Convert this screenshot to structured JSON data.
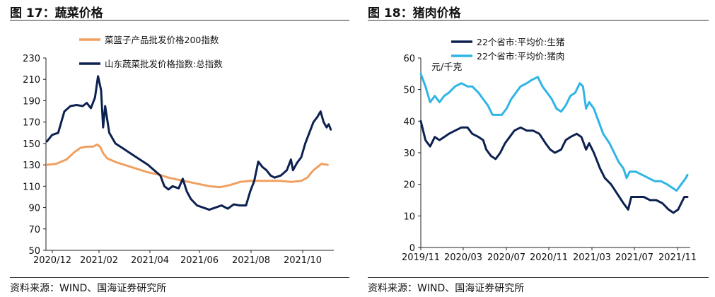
{
  "figures": {
    "left_title": "图 17：蔬菜价格",
    "right_title": "图 18：猪肉价格",
    "left_source": "资料来源：WIND、国海证券研究所",
    "right_source": "资料来源：WIND、国海证券研究所"
  },
  "chart_data": [
    {
      "type": "line",
      "title": "图 17：蔬菜价格",
      "ylim": [
        50,
        230
      ],
      "y_ticks": [
        50,
        70,
        90,
        110,
        130,
        150,
        170,
        190,
        210,
        230
      ],
      "x_tick_labels": [
        "2020/12",
        "2021/02",
        "2021/04",
        "2021/06",
        "2021/08",
        "2021/10"
      ],
      "x_range_months": [
        0,
        11.3
      ],
      "colors": [
        "#F0A060",
        "#0D2150"
      ],
      "series": [
        {
          "name": "菜篮子产品批发价格200指数",
          "color": "#F0A060",
          "points": [
            [
              0.05,
              130
            ],
            [
              0.5,
              131
            ],
            [
              1.0,
              135
            ],
            [
              1.4,
              142
            ],
            [
              1.7,
              146
            ],
            [
              2.0,
              147
            ],
            [
              2.3,
              147
            ],
            [
              2.5,
              149
            ],
            [
              2.65,
              147
            ],
            [
              2.8,
              141
            ],
            [
              3.0,
              136
            ],
            [
              3.5,
              132
            ],
            [
              4.0,
              129
            ],
            [
              4.5,
              126
            ],
            [
              5.0,
              123
            ],
            [
              5.5,
              121
            ],
            [
              6.0,
              118
            ],
            [
              6.5,
              116
            ],
            [
              7.0,
              114
            ],
            [
              7.5,
              112
            ],
            [
              8.0,
              110
            ],
            [
              8.5,
              109
            ],
            [
              9.0,
              111
            ],
            [
              9.5,
              114
            ],
            [
              10.0,
              115
            ],
            [
              10.5,
              115
            ],
            [
              11.0,
              115
            ],
            [
              11.5,
              115
            ],
            [
              12.0,
              114
            ],
            [
              12.5,
              115
            ],
            [
              12.8,
              118
            ],
            [
              13.1,
              125
            ],
            [
              13.5,
              131
            ],
            [
              13.8,
              130
            ]
          ]
        },
        {
          "name": "山东蔬菜批发价格指数:总指数",
          "color": "#0D2150",
          "points": [
            [
              0.05,
              152
            ],
            [
              0.3,
              158
            ],
            [
              0.6,
              160
            ],
            [
              0.9,
              180
            ],
            [
              1.2,
              185
            ],
            [
              1.5,
              186
            ],
            [
              1.8,
              185
            ],
            [
              2.0,
              188
            ],
            [
              2.2,
              183
            ],
            [
              2.4,
              193
            ],
            [
              2.55,
              213
            ],
            [
              2.7,
              200
            ],
            [
              2.8,
              165
            ],
            [
              2.9,
              185
            ],
            [
              3.1,
              160
            ],
            [
              3.4,
              150
            ],
            [
              3.8,
              145
            ],
            [
              4.2,
              140
            ],
            [
              4.6,
              135
            ],
            [
              5.0,
              130
            ],
            [
              5.3,
              125
            ],
            [
              5.6,
              120
            ],
            [
              5.8,
              110
            ],
            [
              6.0,
              107
            ],
            [
              6.2,
              110
            ],
            [
              6.5,
              108
            ],
            [
              6.7,
              117
            ],
            [
              6.9,
              105
            ],
            [
              7.1,
              98
            ],
            [
              7.4,
              92
            ],
            [
              7.7,
              90
            ],
            [
              8.0,
              88
            ],
            [
              8.3,
              90
            ],
            [
              8.6,
              92
            ],
            [
              8.9,
              89
            ],
            [
              9.2,
              93
            ],
            [
              9.5,
              92
            ],
            [
              9.8,
              92
            ],
            [
              10.0,
              105
            ],
            [
              10.2,
              115
            ],
            [
              10.4,
              133
            ],
            [
              10.6,
              128
            ],
            [
              10.8,
              125
            ],
            [
              11.0,
              120
            ],
            [
              11.2,
              118
            ],
            [
              11.5,
              120
            ],
            [
              11.8,
              125
            ],
            [
              12.0,
              135
            ],
            [
              12.1,
              125
            ],
            [
              12.3,
              132
            ],
            [
              12.5,
              137
            ],
            [
              12.7,
              150
            ],
            [
              12.9,
              160
            ],
            [
              13.1,
              170
            ],
            [
              13.3,
              175
            ],
            [
              13.45,
              180
            ],
            [
              13.6,
              170
            ],
            [
              13.75,
              165
            ],
            [
              13.85,
              168
            ],
            [
              13.95,
              163
            ]
          ]
        }
      ]
    },
    {
      "type": "line",
      "title": "图 18：猪肉价格",
      "unit_label": "元/千克",
      "ylim": [
        0,
        60
      ],
      "y_ticks": [
        0,
        10,
        20,
        30,
        40,
        50,
        60
      ],
      "x_tick_labels": [
        "2019/11",
        "2020/03",
        "2020/07",
        "2020/11",
        "2021/03",
        "2021/07",
        "2021/11"
      ],
      "colors": [
        "#0D2150",
        "#2FB5E6"
      ],
      "series": [
        {
          "name": "22个省市:平均价:生猪",
          "color": "#0D2150",
          "points": [
            [
              0.0,
              40
            ],
            [
              0.3,
              34
            ],
            [
              0.6,
              32
            ],
            [
              0.9,
              35
            ],
            [
              1.2,
              34
            ],
            [
              1.5,
              35
            ],
            [
              1.8,
              36
            ],
            [
              2.2,
              37
            ],
            [
              2.6,
              38
            ],
            [
              3.0,
              38
            ],
            [
              3.3,
              36
            ],
            [
              3.7,
              35
            ],
            [
              4.0,
              34
            ],
            [
              4.2,
              31
            ],
            [
              4.5,
              29
            ],
            [
              4.8,
              28
            ],
            [
              5.1,
              30
            ],
            [
              5.4,
              33
            ],
            [
              5.7,
              35
            ],
            [
              6.0,
              37
            ],
            [
              6.4,
              38
            ],
            [
              6.8,
              37
            ],
            [
              7.2,
              37
            ],
            [
              7.6,
              36
            ],
            [
              8.0,
              33
            ],
            [
              8.3,
              31
            ],
            [
              8.6,
              30
            ],
            [
              9.0,
              31
            ],
            [
              9.3,
              34
            ],
            [
              9.6,
              35
            ],
            [
              10.0,
              36
            ],
            [
              10.3,
              35
            ],
            [
              10.6,
              31
            ],
            [
              10.8,
              33
            ],
            [
              11.1,
              30
            ],
            [
              11.5,
              25
            ],
            [
              11.8,
              22
            ],
            [
              12.2,
              20
            ],
            [
              12.6,
              17
            ],
            [
              13.0,
              14
            ],
            [
              13.3,
              12
            ],
            [
              13.5,
              16
            ],
            [
              13.9,
              16
            ],
            [
              14.3,
              16
            ],
            [
              14.7,
              15
            ],
            [
              15.1,
              15
            ],
            [
              15.5,
              14
            ],
            [
              15.9,
              12
            ],
            [
              16.2,
              11
            ],
            [
              16.5,
              12
            ],
            [
              16.7,
              14
            ],
            [
              16.9,
              16
            ],
            [
              17.1,
              16
            ]
          ]
        },
        {
          "name": "22个省市:平均价:猪肉",
          "color": "#2FB5E6",
          "points": [
            [
              0.0,
              55
            ],
            [
              0.3,
              51
            ],
            [
              0.6,
              46
            ],
            [
              0.9,
              48
            ],
            [
              1.2,
              46
            ],
            [
              1.5,
              48
            ],
            [
              1.8,
              49
            ],
            [
              2.2,
              51
            ],
            [
              2.6,
              52
            ],
            [
              3.0,
              51
            ],
            [
              3.3,
              51
            ],
            [
              3.7,
              49
            ],
            [
              4.0,
              47
            ],
            [
              4.3,
              45
            ],
            [
              4.6,
              42
            ],
            [
              4.9,
              42
            ],
            [
              5.2,
              42
            ],
            [
              5.5,
              44
            ],
            [
              5.8,
              47
            ],
            [
              6.1,
              49
            ],
            [
              6.4,
              51
            ],
            [
              6.8,
              52
            ],
            [
              7.1,
              53
            ],
            [
              7.5,
              54
            ],
            [
              7.8,
              51
            ],
            [
              8.1,
              49
            ],
            [
              8.4,
              47
            ],
            [
              8.7,
              44
            ],
            [
              9.0,
              43
            ],
            [
              9.3,
              45
            ],
            [
              9.6,
              48
            ],
            [
              9.9,
              49
            ],
            [
              10.2,
              52
            ],
            [
              10.4,
              51
            ],
            [
              10.6,
              44
            ],
            [
              10.8,
              46
            ],
            [
              11.1,
              44
            ],
            [
              11.4,
              40
            ],
            [
              11.7,
              36
            ],
            [
              12.1,
              33
            ],
            [
              12.4,
              30
            ],
            [
              12.7,
              27
            ],
            [
              13.0,
              25
            ],
            [
              13.2,
              22
            ],
            [
              13.4,
              24
            ],
            [
              13.8,
              24
            ],
            [
              14.2,
              23
            ],
            [
              14.6,
              22
            ],
            [
              15.0,
              21
            ],
            [
              15.4,
              21
            ],
            [
              15.8,
              20
            ],
            [
              16.1,
              19
            ],
            [
              16.4,
              18
            ],
            [
              16.7,
              20
            ],
            [
              17.0,
              22
            ],
            [
              17.1,
              23
            ]
          ]
        }
      ]
    }
  ]
}
